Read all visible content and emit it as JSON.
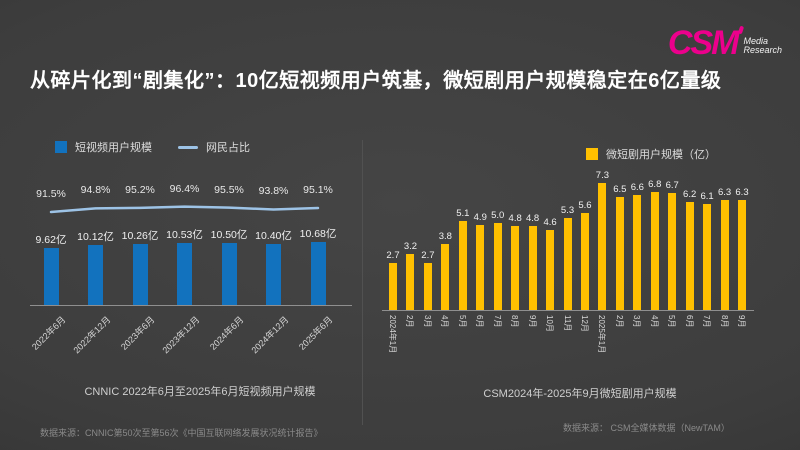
{
  "slide": {
    "title": "从碎片化到“剧集化”：10亿短视频用户筑基，微短剧用户规模稳定在6亿量级",
    "logo": {
      "text": "CSM",
      "sub_line1": "Media",
      "sub_line2": "Research",
      "color": "#EC008C"
    }
  },
  "colors": {
    "background": "#3D3D3D",
    "bar_blue": "#1272BE",
    "bar_yellow": "#FFC000",
    "line_blue": "#9DC3E6"
  },
  "left_chart": {
    "legend_bar": "短视频用户规模",
    "legend_line": "网民占比",
    "caption": "CNNIC 2022年6月至2025年6月短视频用户规模",
    "source": "数据来源：CNNIC第50次至第56次《中国互联网络发展状况统计报告》"
  },
  "right_chart": {
    "legend_bar": "微短剧用户规模（亿）",
    "caption": "CSM2024年-2025年9月微短剧用户规模",
    "source": "数据来源： CSM全媒体数据（NewTAM）"
  },
  "chart_data": [
    {
      "type": "bar",
      "title": "CNNIC 2022年6月至2025年6月短视频用户规模",
      "categories": [
        "2022年6月",
        "2022年12月",
        "2023年6月",
        "2023年12月",
        "2024年6月",
        "2024年12月",
        "2025年6月"
      ],
      "series": [
        {
          "name": "短视频用户规模",
          "type": "bar",
          "unit": "亿",
          "color": "#1272BE",
          "values": [
            9.62,
            10.12,
            10.26,
            10.53,
            10.5,
            10.4,
            10.68
          ],
          "labels": [
            "9.62亿",
            "10.12亿",
            "10.26亿",
            "10.53亿",
            "10.50亿",
            "10.40亿",
            "10.68亿"
          ]
        },
        {
          "name": "网民占比",
          "type": "line",
          "unit": "%",
          "color": "#9DC3E6",
          "values": [
            91.5,
            94.8,
            95.2,
            96.4,
            95.5,
            93.8,
            95.1
          ],
          "labels": [
            "91.5%",
            "94.8%",
            "95.2%",
            "96.4%",
            "95.5%",
            "93.8%",
            "95.1%"
          ]
        }
      ],
      "ylim": [
        0,
        12
      ],
      "grid": false,
      "legend_position": "top-left",
      "source": "数据来源：CNNIC第50次至第56次《中国互联网络发展状况统计报告》"
    },
    {
      "type": "bar",
      "title": "CSM2024年-2025年9月微短剧用户规模",
      "legend": "微短剧用户规模（亿）",
      "categories": [
        "2024年1月",
        "2月",
        "3月",
        "4月",
        "5月",
        "6月",
        "7月",
        "8月",
        "9月",
        "10月",
        "11月",
        "12月",
        "2025年1月",
        "2月",
        "3月",
        "4月",
        "5月",
        "6月",
        "7月",
        "8月",
        "9月"
      ],
      "values": [
        2.7,
        3.2,
        2.7,
        3.8,
        5.1,
        4.9,
        5.0,
        4.8,
        4.8,
        4.6,
        5.3,
        5.6,
        7.3,
        6.5,
        6.6,
        6.8,
        6.7,
        6.2,
        6.1,
        6.3,
        6.3
      ],
      "labels": [
        "2.7",
        "3.2",
        "2.7",
        "3.8",
        "5.1",
        "4.9",
        "5.0",
        "4.8",
        "4.8",
        "4.6",
        "5.3",
        "5.6",
        "7.3",
        "6.5",
        "6.6",
        "6.8",
        "6.7",
        "6.2",
        "6.1",
        "6.3",
        "6.3"
      ],
      "color": "#FFC000",
      "ylim": [
        0,
        8
      ],
      "grid": false,
      "legend_position": "top-right",
      "source": "数据来源： CSM全媒体数据（NewTAM）"
    }
  ]
}
